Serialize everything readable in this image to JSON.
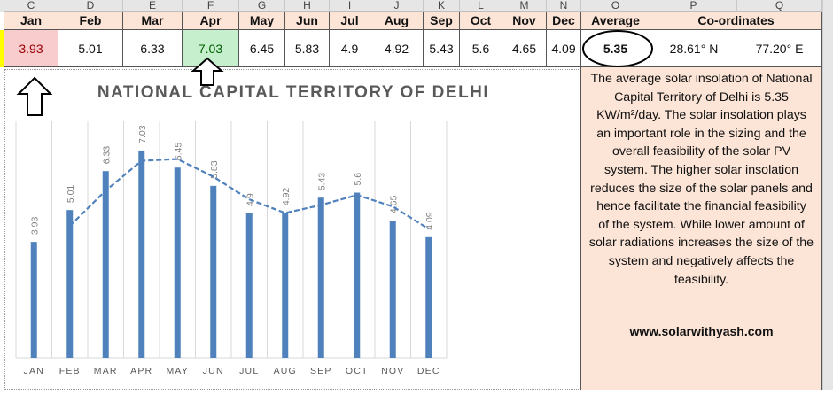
{
  "sheet": {
    "column_letters": [
      "C",
      "D",
      "E",
      "F",
      "G",
      "H",
      "I",
      "J",
      "K",
      "L",
      "M",
      "N",
      "O",
      "P",
      "Q"
    ],
    "month_headers": [
      "Jan",
      "Feb",
      "Mar",
      "Apr",
      "May",
      "Jun",
      "Jul",
      "Aug",
      "Sep",
      "Oct",
      "Nov",
      "Dec"
    ],
    "month_values": [
      "3.93",
      "5.01",
      "6.33",
      "7.03",
      "6.45",
      "5.83",
      "4.9",
      "4.92",
      "5.43",
      "5.6",
      "4.65",
      "4.09"
    ],
    "average_header": "Average",
    "average_value": "5.35",
    "coordinates_header": "Co-ordinates",
    "latitude": "28.61° N",
    "longitude": "77.20° E",
    "min_highlight_color": "#f8cbcc",
    "max_highlight_color": "#c6efce"
  },
  "textbox": {
    "lines": [
      "The average solar insolation of National",
      "Capital Territory of Delhi is 5.35",
      "KW/m²/day. The solar insolation plays",
      "an important role in the sizing and the",
      "overall feasibility of the solar PV",
      "system. The higher solar insolation",
      "reduces the size of the solar panels and",
      "hence facilitate the financial feasibility",
      "of the system. While lower amount of",
      "solar radiations increases the size of the",
      "system and negatively affects the",
      "feasibility."
    ],
    "website": "www.solarwithyash.com"
  },
  "chart_data": {
    "type": "bar",
    "title": "NATIONAL CAPITAL TERRITORY OF DELHI",
    "categories": [
      "JAN",
      "FEB",
      "MAR",
      "APR",
      "MAY",
      "JUN",
      "JUL",
      "AUG",
      "SEP",
      "OCT",
      "NOV",
      "DEC"
    ],
    "values": [
      3.93,
      5.01,
      6.33,
      7.03,
      6.45,
      5.83,
      4.9,
      4.92,
      5.43,
      5.6,
      4.65,
      4.09
    ],
    "data_labels": [
      "3.93",
      "5.01",
      "6.33",
      "7.03",
      "6.45",
      "5.83",
      "4.9",
      "4.92",
      "5.43",
      "5.6",
      "4.65",
      "4.09"
    ],
    "trendline": {
      "type": "2-period moving average",
      "style": "dashed",
      "values": [
        null,
        4.47,
        5.67,
        6.68,
        6.74,
        6.14,
        5.37,
        4.91,
        5.18,
        5.52,
        5.13,
        4.37
      ]
    },
    "ylim": [
      0,
      8
    ],
    "grid": "vertical",
    "bar_color": "#4f81bd",
    "legend": "none"
  }
}
